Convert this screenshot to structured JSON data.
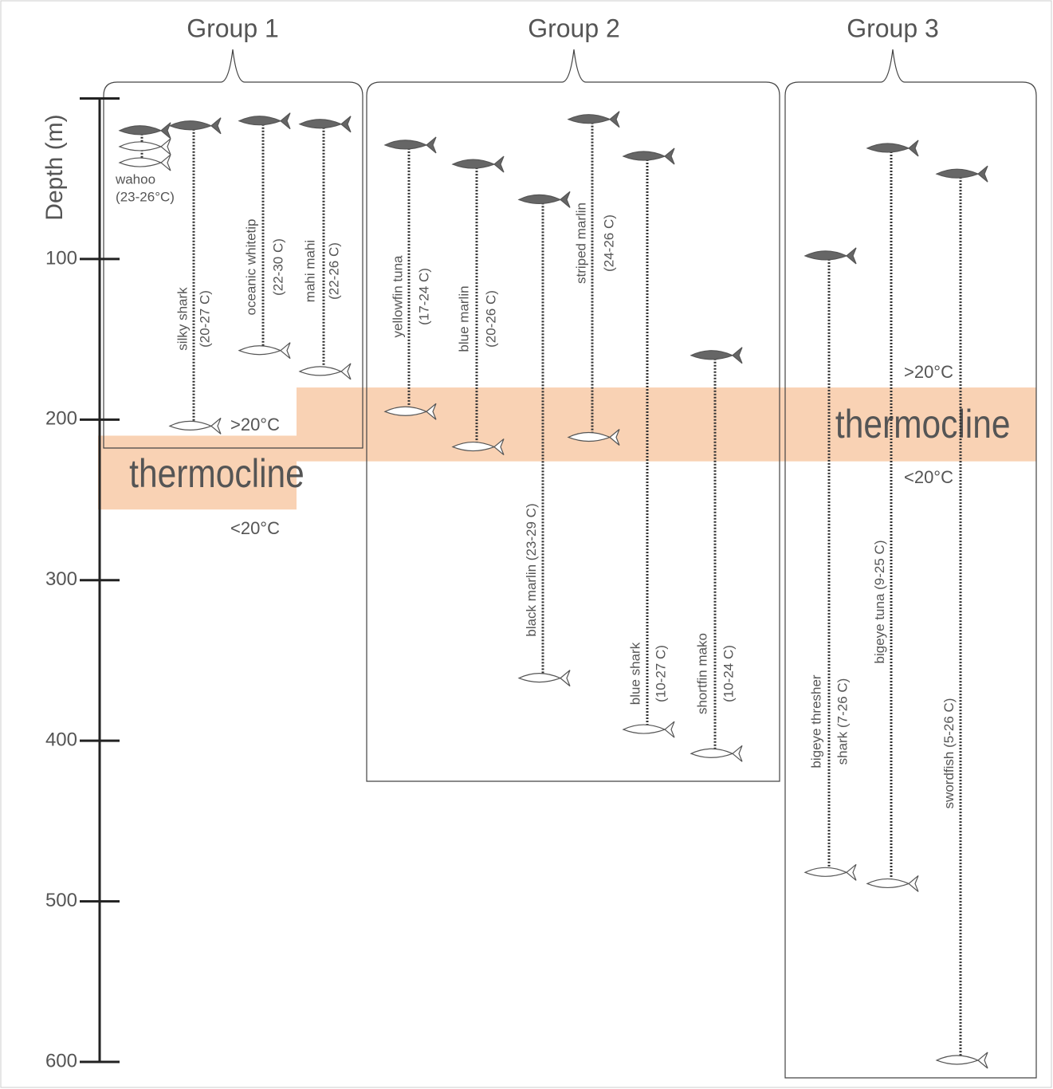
{
  "chart_data": {
    "type": "range",
    "y_label": "Depth (m)",
    "ylim": [
      0,
      600
    ],
    "yticks": [
      100,
      200,
      300,
      400,
      500,
      600
    ],
    "groups": [
      "Group 1",
      "Group 2",
      "Group 3"
    ],
    "species": [
      {
        "name": "wahoo",
        "temp": "(23-26°C)",
        "group": 0,
        "top": 20,
        "bottom": 40
      },
      {
        "name": "silky shark",
        "temp": "(20-27  C)",
        "group": 0,
        "top": 17,
        "bottom": 204
      },
      {
        "name": "oceanic whitetip",
        "temp": "(22-30  C)",
        "group": 0,
        "top": 14,
        "bottom": 157
      },
      {
        "name": "mahi mahi",
        "temp": "(22-26  C)",
        "group": 0,
        "top": 16,
        "bottom": 170
      },
      {
        "name": "yellowfin tuna",
        "temp": "(17-24  C)",
        "group": 1,
        "top": 29,
        "bottom": 195
      },
      {
        "name": "blue marlin",
        "temp": "(20-26  C)",
        "group": 1,
        "top": 41,
        "bottom": 217
      },
      {
        "name": "black marlin",
        "temp": "(23-29  C)",
        "group": 1,
        "top": 63,
        "bottom": 361
      },
      {
        "name": "striped marlin",
        "temp": "(24-26  C)",
        "group": 1,
        "top": 13,
        "bottom": 211
      },
      {
        "name": "blue shark",
        "temp": "(10-27  C)",
        "group": 1,
        "top": 36,
        "bottom": 393
      },
      {
        "name": "shortfin mako",
        "temp": "(10-24  C)",
        "group": 1,
        "top": 160,
        "bottom": 408
      },
      {
        "name": "bigeye thresher",
        "temp": "shark (7-26  C)",
        "group": 2,
        "top": 98,
        "bottom": 482
      },
      {
        "name": "bigeye tuna",
        "temp": "(9-25  C)",
        "group": 2,
        "top": 31,
        "bottom": 489
      },
      {
        "name": "swordfish",
        "temp": "(5-26  C)",
        "group": 2,
        "top": 47,
        "bottom": 599
      }
    ],
    "thermocline_label": "thermocline",
    "above_label": ">20°C",
    "below_label": "<20°C",
    "thermocline": [
      {
        "top": 210,
        "bottom": 256
      },
      {
        "top": 180,
        "bottom": 226
      }
    ]
  }
}
